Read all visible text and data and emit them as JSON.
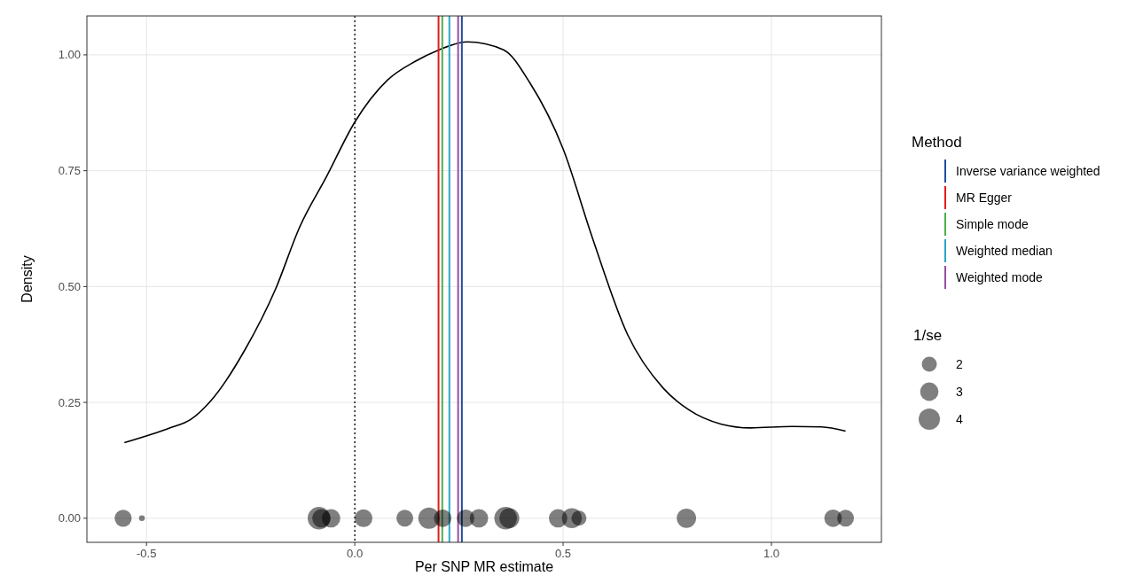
{
  "chart_data": {
    "type": "line",
    "xlabel": "Per SNP MR estimate",
    "ylabel": "Density",
    "xlim": [
      -0.643,
      1.264
    ],
    "ylim": [
      -0.052,
      1.084
    ],
    "xticks": [
      -0.5,
      {
        "value": 0,
        "label": "0.0"
      },
      0.5,
      {
        "value": 1,
        "label": "1.0"
      }
    ],
    "yticks": [
      {
        "value": 0,
        "label": "0.00"
      },
      {
        "value": 0.25,
        "label": "0.25"
      },
      {
        "value": 0.5,
        "label": "0.50"
      },
      {
        "value": 0.75,
        "label": "0.75"
      },
      {
        "value": 1,
        "label": "1.00"
      }
    ],
    "grid": true,
    "legend": "right",
    "legend_title": "Method",
    "annotations": [
      "1/se"
    ],
    "size_legend": [
      2,
      3,
      4
    ],
    "series": [
      {
        "type": "line",
        "color": "#000000",
        "x": [
          -0.553,
          -0.443,
          -0.394,
          -0.345,
          -0.264,
          -0.19,
          -0.133,
          -0.068,
          0.0,
          0.079,
          0.145,
          0.2,
          0.27,
          0.357,
          0.42,
          0.5,
          0.57,
          0.655,
          0.74,
          0.8,
          0.88,
          0.95,
          1.05,
          1.12,
          1.178
        ],
        "values": [
          0.163,
          0.195,
          0.213,
          0.254,
          0.363,
          0.495,
          0.627,
          0.737,
          0.855,
          0.946,
          0.986,
          1.01,
          1.028,
          1.011,
          0.94,
          0.797,
          0.606,
          0.396,
          0.281,
          0.235,
          0.203,
          0.195,
          0.198,
          0.197,
          0.188
        ]
      },
      {
        "type": "scatter",
        "color": "#000000",
        "x": [
          -0.556,
          -0.511,
          -0.086,
          -0.08,
          -0.057,
          0.021,
          0.12,
          0.178,
          0.211,
          0.266,
          0.298,
          0.362,
          0.371,
          0.488,
          0.521,
          0.538,
          0.796,
          1.148,
          1.178
        ],
        "values": [
          0,
          0,
          0,
          0,
          0,
          0,
          0,
          0,
          0,
          0,
          0,
          0,
          0,
          0,
          0,
          0,
          0,
          0,
          0
        ],
        "sizes": [
          2.6,
          0.3,
          4.5,
          3,
          3,
          2.8,
          2.5,
          4,
          2.7,
          2.7,
          3,
          4.5,
          3.5,
          3,
          3.5,
          2,
          3.3,
          2.7,
          2.5
        ]
      },
      {
        "type": "line",
        "name": "Inverse variance weighted",
        "color": "#1f4e9e",
        "x": [
          0.257,
          0.257
        ],
        "values": [
          -0.052,
          1.084
        ]
      },
      {
        "type": "line",
        "name": "MR Egger",
        "color": "#e41a1c",
        "x": [
          0.201,
          0.201
        ],
        "values": [
          -0.052,
          1.084
        ]
      },
      {
        "type": "line",
        "name": "Simple mode",
        "color": "#4daf4a",
        "x": [
          0.21,
          0.21
        ],
        "values": [
          -0.052,
          1.084
        ]
      },
      {
        "type": "line",
        "name": "Weighted median",
        "color": "#2ba6c6",
        "x": [
          0.227,
          0.227
        ],
        "values": [
          -0.052,
          1.084
        ]
      },
      {
        "type": "line",
        "name": "Weighted mode",
        "color": "#984ea3",
        "x": [
          0.248,
          0.248
        ],
        "values": [
          -0.052,
          1.084
        ]
      }
    ],
    "ref_lines": [
      {
        "axis": "x",
        "value": 0,
        "color": "#000000",
        "line_style": "dotted"
      }
    ]
  }
}
